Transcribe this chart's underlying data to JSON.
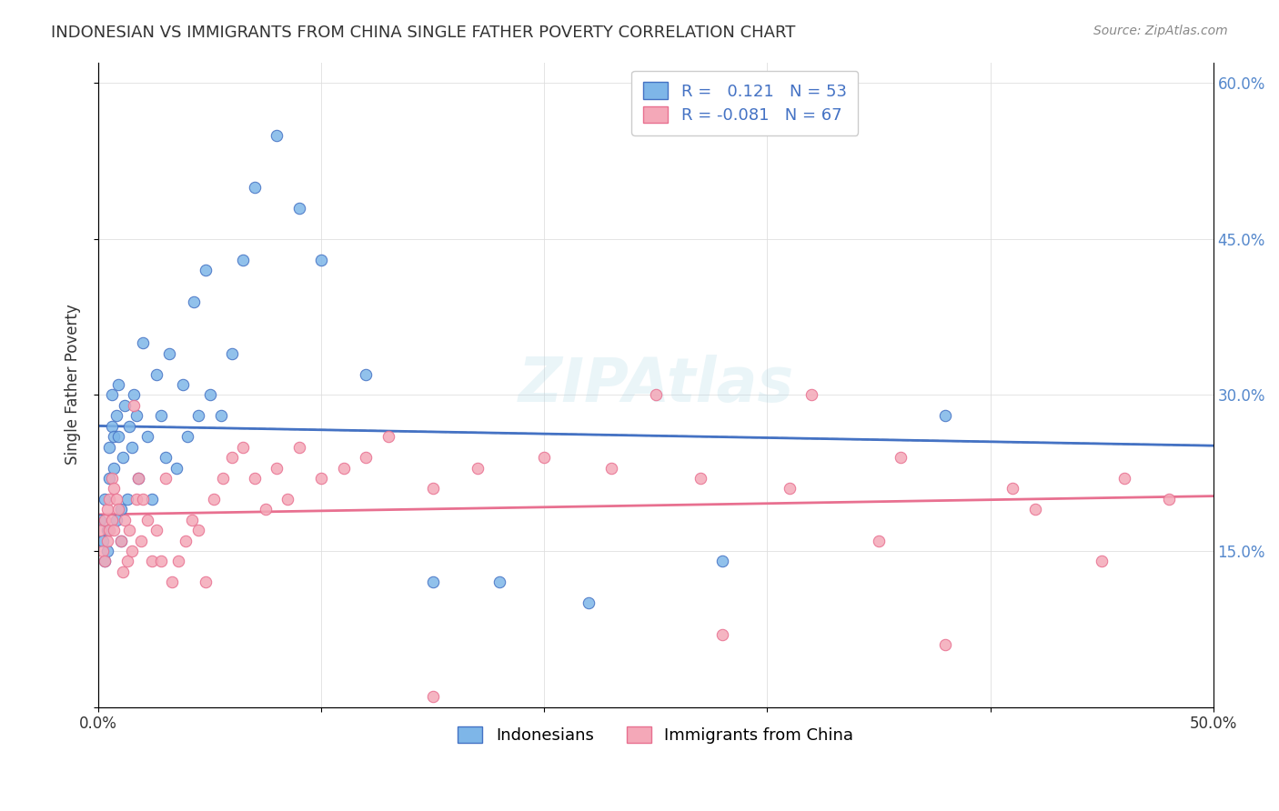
{
  "title": "INDONESIAN VS IMMIGRANTS FROM CHINA SINGLE FATHER POVERTY CORRELATION CHART",
  "source": "Source: ZipAtlas.com",
  "xlabel": "",
  "ylabel": "Single Father Poverty",
  "x_ticks": [
    0.0,
    0.1,
    0.2,
    0.3,
    0.4,
    0.5
  ],
  "x_tick_labels": [
    "0.0%",
    "",
    "",
    "",
    "",
    "50.0%"
  ],
  "y_ticks_right": [
    0.0,
    0.15,
    0.3,
    0.45,
    0.6
  ],
  "y_tick_labels_right": [
    "",
    "15.0%",
    "30.0%",
    "45.0%",
    "60.0%"
  ],
  "indonesian_color": "#7EB6E8",
  "china_color": "#F4A8B8",
  "indonesian_line_color": "#4472C4",
  "china_line_color": "#E87090",
  "trendline_indonesian_color": "#4472C4",
  "trendline_china_color": "#E87090",
  "dashed_line_color": "#AAAAAA",
  "R_indonesian": 0.121,
  "N_indonesian": 53,
  "R_china": -0.081,
  "N_china": 67,
  "background_color": "#FFFFFF",
  "grid_color": "#DDDDDD",
  "indonesian_x": [
    0.001,
    0.002,
    0.003,
    0.003,
    0.004,
    0.004,
    0.005,
    0.005,
    0.006,
    0.006,
    0.007,
    0.007,
    0.008,
    0.008,
    0.009,
    0.009,
    0.01,
    0.01,
    0.011,
    0.012,
    0.013,
    0.014,
    0.015,
    0.016,
    0.017,
    0.018,
    0.02,
    0.022,
    0.024,
    0.026,
    0.028,
    0.03,
    0.032,
    0.035,
    0.038,
    0.04,
    0.043,
    0.045,
    0.048,
    0.05,
    0.055,
    0.06,
    0.065,
    0.07,
    0.08,
    0.09,
    0.1,
    0.12,
    0.15,
    0.18,
    0.22,
    0.28,
    0.38
  ],
  "indonesian_y": [
    0.18,
    0.16,
    0.2,
    0.14,
    0.17,
    0.15,
    0.25,
    0.22,
    0.3,
    0.27,
    0.26,
    0.23,
    0.28,
    0.18,
    0.31,
    0.26,
    0.19,
    0.16,
    0.24,
    0.29,
    0.2,
    0.27,
    0.25,
    0.3,
    0.28,
    0.22,
    0.35,
    0.26,
    0.2,
    0.32,
    0.28,
    0.24,
    0.34,
    0.23,
    0.31,
    0.26,
    0.39,
    0.28,
    0.42,
    0.3,
    0.28,
    0.34,
    0.43,
    0.5,
    0.55,
    0.48,
    0.43,
    0.32,
    0.12,
    0.12,
    0.1,
    0.14,
    0.28
  ],
  "china_x": [
    0.001,
    0.002,
    0.003,
    0.003,
    0.004,
    0.004,
    0.005,
    0.005,
    0.006,
    0.006,
    0.007,
    0.007,
    0.008,
    0.009,
    0.01,
    0.011,
    0.012,
    0.013,
    0.014,
    0.015,
    0.016,
    0.017,
    0.018,
    0.019,
    0.02,
    0.022,
    0.024,
    0.026,
    0.028,
    0.03,
    0.033,
    0.036,
    0.039,
    0.042,
    0.045,
    0.048,
    0.052,
    0.056,
    0.06,
    0.065,
    0.07,
    0.075,
    0.08,
    0.085,
    0.09,
    0.1,
    0.11,
    0.12,
    0.13,
    0.15,
    0.17,
    0.2,
    0.23,
    0.27,
    0.31,
    0.36,
    0.41,
    0.46,
    0.35,
    0.42,
    0.28,
    0.38,
    0.45,
    0.25,
    0.32,
    0.48,
    0.15
  ],
  "china_y": [
    0.17,
    0.15,
    0.18,
    0.14,
    0.19,
    0.16,
    0.2,
    0.17,
    0.22,
    0.18,
    0.21,
    0.17,
    0.2,
    0.19,
    0.16,
    0.13,
    0.18,
    0.14,
    0.17,
    0.15,
    0.29,
    0.2,
    0.22,
    0.16,
    0.2,
    0.18,
    0.14,
    0.17,
    0.14,
    0.22,
    0.12,
    0.14,
    0.16,
    0.18,
    0.17,
    0.12,
    0.2,
    0.22,
    0.24,
    0.25,
    0.22,
    0.19,
    0.23,
    0.2,
    0.25,
    0.22,
    0.23,
    0.24,
    0.26,
    0.21,
    0.23,
    0.24,
    0.23,
    0.22,
    0.21,
    0.24,
    0.21,
    0.22,
    0.16,
    0.19,
    0.07,
    0.06,
    0.14,
    0.3,
    0.3,
    0.2,
    0.01
  ],
  "xlim": [
    0.0,
    0.5
  ],
  "ylim": [
    0.0,
    0.62
  ]
}
